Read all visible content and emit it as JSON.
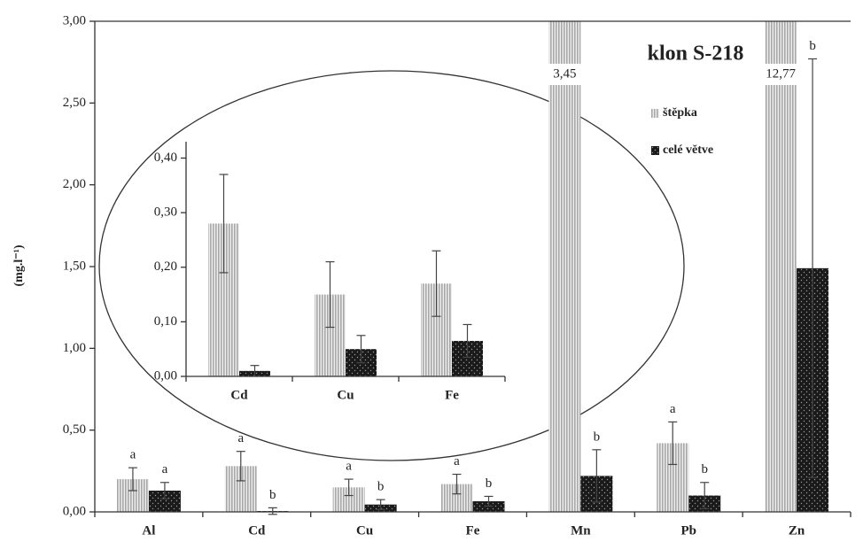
{
  "chart_data": [
    {
      "type": "bar",
      "title": "klon S-218",
      "y_label": "(mg.l⁻¹)",
      "categories": [
        "Al",
        "Cd",
        "Cu",
        "Fe",
        "Mn",
        "Pb",
        "Zn"
      ],
      "ylim": [
        0,
        3
      ],
      "yticks": [
        {
          "value": 0,
          "label": "0,00"
        },
        {
          "value": 0.5,
          "label": "0,50"
        },
        {
          "value": 1,
          "label": "1,00"
        },
        {
          "value": 1.5,
          "label": "1,50"
        },
        {
          "value": 2,
          "label": "2,00"
        },
        {
          "value": 2.5,
          "label": "2,50"
        },
        {
          "value": 3,
          "label": "3,00"
        }
      ],
      "series": [
        {
          "name": "štěpka",
          "color": "#a8a8a8",
          "pattern": "stripes",
          "values": [
            0.2,
            0.28,
            0.15,
            0.17,
            3.45,
            0.42,
            12.77
          ],
          "errors": [
            0.07,
            0.09,
            0.05,
            0.06,
            null,
            0.13,
            null
          ],
          "value_labels": [
            null,
            null,
            null,
            null,
            "3,45",
            null,
            "12,77"
          ],
          "letters": [
            "a",
            "a",
            "a",
            "a",
            null,
            "a",
            null
          ]
        },
        {
          "name": "celé větve",
          "color": "#1a1a1a",
          "pattern": "dots",
          "values": [
            0.13,
            0.005,
            0.045,
            0.065,
            0.22,
            0.1,
            1.49
          ],
          "errors": [
            0.05,
            0.02,
            0.03,
            0.03,
            0.16,
            0.08,
            1.28
          ],
          "letters": [
            "a",
            "b",
            "b",
            "b",
            "b",
            "b",
            "b"
          ]
        }
      ]
    },
    {
      "type": "bar",
      "categories": [
        "Cd",
        "Cu",
        "Fe"
      ],
      "ylim": [
        0,
        0.43
      ],
      "yticks": [
        {
          "value": 0,
          "label": "0,00"
        },
        {
          "value": 0.1,
          "label": "0,10"
        },
        {
          "value": 0.2,
          "label": "0,20"
        },
        {
          "value": 0.3,
          "label": "0,30"
        },
        {
          "value": 0.4,
          "label": "0,40"
        }
      ],
      "series": [
        {
          "color": "#a8a8a8",
          "pattern": "stripes",
          "values": [
            0.28,
            0.15,
            0.17
          ],
          "errors": [
            0.09,
            0.06,
            0.06
          ]
        },
        {
          "color": "#1a1a1a",
          "pattern": "dots",
          "values": [
            0.01,
            0.05,
            0.065
          ],
          "errors": [
            0.01,
            0.025,
            0.03
          ]
        }
      ]
    }
  ]
}
